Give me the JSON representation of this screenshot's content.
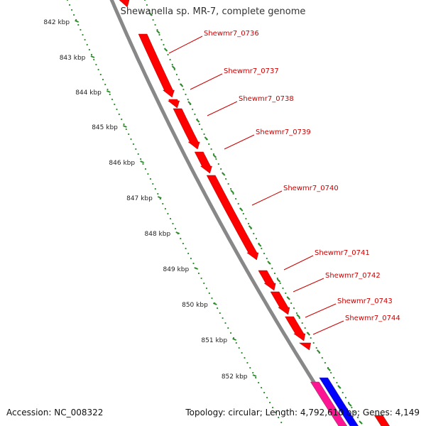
{
  "title": "Shewanella sp. MR-7, complete genome",
  "footer": {
    "accession": "Accession: NC_008322",
    "summary": "Topology: circular; Length: 4,792,610 bp; Genes: 4,149"
  },
  "colors": {
    "gene_forward": "#ff0000",
    "gene_other_pink": "#ff1493",
    "gene_other_blue": "#0000ff",
    "backbone": "#888888",
    "scale_ticks": "#2e8b2e",
    "gene_label": "#cc0000"
  },
  "scale": {
    "ticks": [
      {
        "label": "842 kbp"
      },
      {
        "label": "843 kbp"
      },
      {
        "label": "844 kbp"
      },
      {
        "label": "845 kbp"
      },
      {
        "label": "846 kbp"
      },
      {
        "label": "847 kbp"
      },
      {
        "label": "848 kbp"
      },
      {
        "label": "849 kbp"
      },
      {
        "label": "850 kbp"
      },
      {
        "label": "851 kbp"
      },
      {
        "label": "852 kbp"
      }
    ]
  },
  "genes": [
    {
      "name": "Shewmr7_0736"
    },
    {
      "name": "Shewmr7_0737"
    },
    {
      "name": "Shewmr7_0738"
    },
    {
      "name": "Shewmr7_0739"
    },
    {
      "name": "Shewmr7_0740"
    },
    {
      "name": "Shewmr7_0741"
    },
    {
      "name": "Shewmr7_0742"
    },
    {
      "name": "Shewmr7_0743"
    },
    {
      "name": "Shewmr7_0744"
    }
  ]
}
